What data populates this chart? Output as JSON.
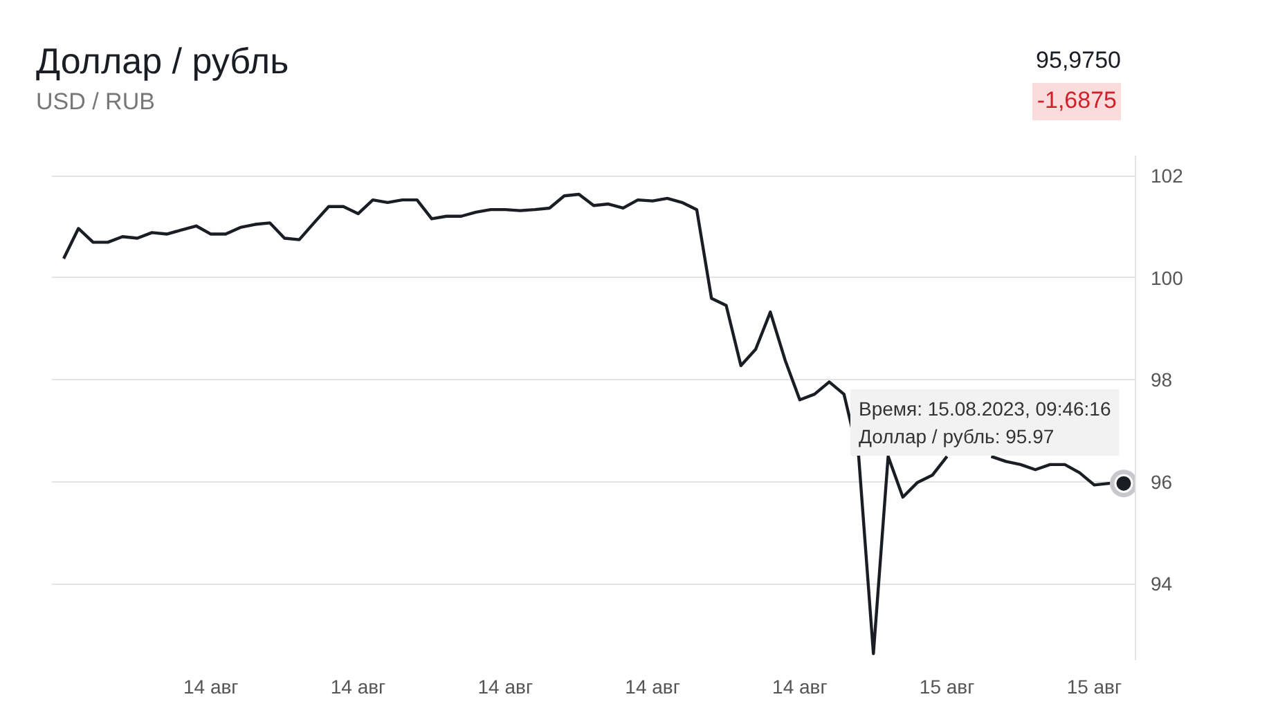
{
  "chart_data": {
    "type": "line",
    "title": "Доллар / рубль",
    "subtitle": "USD / RUB",
    "annotations": [
      "95,9750",
      "-1,6875",
      "Время: 15.08.2023, 09:46:16\nДоллар / рубль: 95.97"
    ],
    "categories": [
      null,
      null,
      null,
      null,
      null,
      null,
      null,
      null,
      null,
      null,
      "14 авг",
      null,
      null,
      null,
      null,
      null,
      null,
      null,
      null,
      null,
      "14 авг",
      null,
      null,
      null,
      null,
      null,
      null,
      null,
      null,
      null,
      "14 авг",
      null,
      null,
      null,
      null,
      null,
      null,
      null,
      null,
      null,
      "14 авг",
      null,
      null,
      null,
      null,
      null,
      null,
      null,
      null,
      null,
      "14 авг",
      null,
      null,
      null,
      null,
      null,
      null,
      null,
      null,
      null,
      "15 авг",
      null,
      null,
      null,
      null,
      null,
      null,
      null,
      null,
      null,
      "15 авг",
      null,
      null
    ],
    "series": [
      {
        "color": "#1b1d24",
        "values": [
          100.38,
          100.97,
          100.7,
          100.7,
          100.81,
          100.78,
          100.89,
          100.86,
          100.94,
          101.02,
          100.86,
          100.86,
          100.99,
          101.05,
          101.08,
          100.78,
          100.75,
          101.08,
          101.4,
          101.4,
          101.26,
          101.53,
          101.48,
          101.53,
          101.53,
          101.16,
          101.21,
          101.21,
          101.29,
          101.34,
          101.34,
          101.32,
          101.34,
          101.37,
          101.61,
          101.64,
          101.42,
          101.45,
          101.37,
          101.53,
          101.51,
          101.56,
          101.48,
          101.34,
          99.6,
          99.46,
          98.28,
          98.6,
          99.33,
          98.39,
          97.61,
          97.72,
          97.96,
          97.72,
          96.5,
          92.63,
          96.5,
          95.7,
          95.99,
          96.13,
          96.5,
          null,
          null,
          96.5,
          96.4,
          96.34,
          96.24,
          96.34,
          96.34,
          96.18,
          95.94,
          95.97,
          95.97
        ]
      }
    ],
    "ylim": [
      92.5,
      102.4
    ],
    "yticks": [
      94,
      96,
      98,
      100,
      102
    ],
    "grid": "y",
    "line_style": "solid"
  }
}
